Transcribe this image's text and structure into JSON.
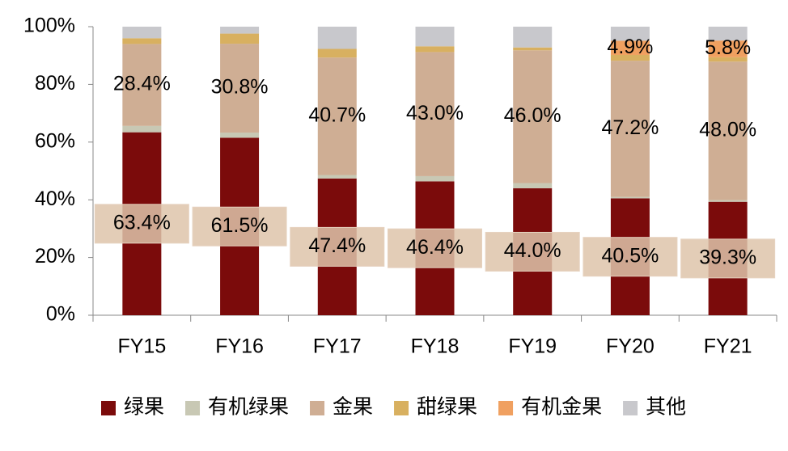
{
  "chart_data": {
    "type": "stacked_bar",
    "categories": [
      "FY15",
      "FY16",
      "FY17",
      "FY18",
      "FY19",
      "FY20",
      "FY21"
    ],
    "series": [
      {
        "name": "绿果",
        "color": "#7b0b0b",
        "values": [
          63.4,
          61.5,
          47.4,
          46.4,
          44.0,
          40.5,
          39.3
        ],
        "value_labels": [
          "63.4%",
          "61.5%",
          "47.4%",
          "46.4%",
          "44.0%",
          "40.5%",
          "39.3%"
        ]
      },
      {
        "name": "有机绿果",
        "color": "#c8c8b4",
        "values": [
          2.2,
          1.8,
          1.2,
          1.8,
          1.8,
          0.5,
          0.6
        ]
      },
      {
        "name": "金果",
        "color": "#cfae94",
        "values": [
          28.4,
          30.8,
          40.7,
          43.0,
          46.0,
          47.2,
          48.0
        ],
        "value_labels": [
          "28.4%",
          "30.8%",
          "40.7%",
          "43.0%",
          "46.0%",
          "47.2%",
          "48.0%"
        ]
      },
      {
        "name": "甜绿果",
        "color": "#d8b060",
        "values": [
          2.0,
          3.5,
          3.0,
          2.0,
          1.0,
          2.0,
          1.5
        ]
      },
      {
        "name": "有机金果",
        "color": "#f0a060",
        "values": [
          0,
          0,
          0,
          0,
          0,
          4.9,
          5.8
        ],
        "value_labels": [
          null,
          null,
          null,
          null,
          null,
          "4.9%",
          "5.8%"
        ]
      },
      {
        "name": "其他",
        "color": "#c8c8cc",
        "values": [
          4.0,
          2.4,
          7.7,
          6.8,
          7.2,
          4.9,
          4.8
        ]
      }
    ],
    "ylim": [
      0,
      100
    ],
    "yticks": [
      {
        "value": 0,
        "label": "0%"
      },
      {
        "value": 20,
        "label": "20%"
      },
      {
        "value": 40,
        "label": "40%"
      },
      {
        "value": 60,
        "label": "60%"
      },
      {
        "value": 80,
        "label": "80%"
      },
      {
        "value": 100,
        "label": "100%"
      }
    ]
  }
}
